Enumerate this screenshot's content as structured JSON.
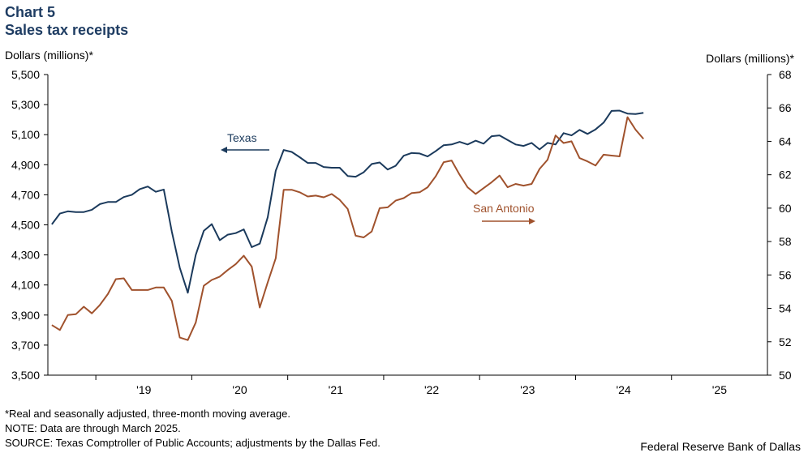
{
  "header": {
    "chart_number": "Chart 5",
    "title": "Sales tax receipts"
  },
  "axes": {
    "left_title": "Dollars (millions)*",
    "right_title": "Dollars (millions)*"
  },
  "notes": {
    "footnote": "*Real and seasonally adjusted, three-month moving average.",
    "note": "NOTE: Data are through March 2025.",
    "source": "SOURCE: Texas Comptroller of Public Accounts; adjustments by the Dallas Fed."
  },
  "credit": "Federal Reserve Bank of Dallas",
  "colors": {
    "texas": "#1b3a5c",
    "san_antonio": "#a0522d",
    "title": "#1f3d63"
  },
  "chart_data": {
    "type": "line",
    "title": "Sales tax receipts",
    "x_start": "2018-07",
    "x_frequency": "monthly",
    "x_tick_labels": [
      "'19",
      "'20",
      "'21",
      "'22",
      "'23",
      "'24",
      "'25"
    ],
    "x_ticks_year_boundaries": [
      2019,
      2020,
      2021,
      2022,
      2023,
      2024,
      2025
    ],
    "ylim_left": [
      3500,
      5500
    ],
    "y_ticks_left": [
      3500,
      3700,
      3900,
      4100,
      4300,
      4500,
      4700,
      4900,
      5100,
      5300,
      5500
    ],
    "y_tick_labels_left": [
      "3,500",
      "3,700",
      "3,900",
      "4,100",
      "4,300",
      "4,500",
      "4,700",
      "4,900",
      "5,100",
      "5,300",
      "5,500"
    ],
    "ylim_right": [
      50,
      68
    ],
    "y_ticks_right": [
      50,
      52,
      54,
      56,
      58,
      60,
      62,
      64,
      66,
      68
    ],
    "y_tick_labels_right": [
      "50",
      "52",
      "54",
      "56",
      "58",
      "60",
      "62",
      "64",
      "66",
      "68"
    ],
    "series": [
      {
        "name": "Texas",
        "axis": "left",
        "label": "Texas",
        "values": [
          4503,
          4575,
          4590,
          4585,
          4585,
          4600,
          4638,
          4652,
          4652,
          4685,
          4700,
          4738,
          4755,
          4720,
          4735,
          4455,
          4215,
          4048,
          4300,
          4460,
          4505,
          4398,
          4435,
          4445,
          4470,
          4352,
          4375,
          4550,
          4860,
          4998,
          4985,
          4950,
          4912,
          4912,
          4885,
          4880,
          4880,
          4825,
          4820,
          4850,
          4905,
          4915,
          4868,
          4893,
          4960,
          4978,
          4975,
          4955,
          4990,
          5030,
          5035,
          5052,
          5035,
          5060,
          5040,
          5090,
          5095,
          5065,
          5035,
          5025,
          5045,
          5002,
          5045,
          5035,
          5110,
          5095,
          5132,
          5105,
          5135,
          5180,
          5258,
          5260,
          5240,
          5237,
          5245
        ]
      },
      {
        "name": "San Antonio",
        "axis": "right",
        "label": "San Antonio",
        "values": [
          53.0,
          52.7,
          53.6,
          53.65,
          54.1,
          53.7,
          54.2,
          54.85,
          55.75,
          55.8,
          55.1,
          55.1,
          55.1,
          55.25,
          55.25,
          54.45,
          52.25,
          52.1,
          53.15,
          55.35,
          55.7,
          55.9,
          56.3,
          56.65,
          57.15,
          56.5,
          54.05,
          55.55,
          57.0,
          61.1,
          61.1,
          60.95,
          60.7,
          60.75,
          60.65,
          60.85,
          60.5,
          59.95,
          58.35,
          58.25,
          58.6,
          60.0,
          60.05,
          60.45,
          60.6,
          60.9,
          60.95,
          61.25,
          61.9,
          62.75,
          62.85,
          62.0,
          61.25,
          60.85,
          61.2,
          61.55,
          61.95,
          61.25,
          61.45,
          61.35,
          61.45,
          62.35,
          62.9,
          64.35,
          63.9,
          64.0,
          63.0,
          62.8,
          62.55,
          63.2,
          63.15,
          63.1,
          65.45,
          64.7,
          64.15
        ]
      }
    ]
  }
}
